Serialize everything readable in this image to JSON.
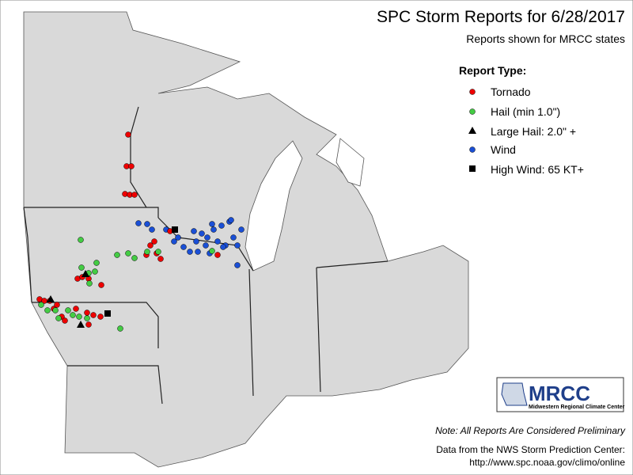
{
  "header": {
    "title": "SPC Storm Reports for 6/28/2017",
    "subtitle": "Reports shown for MRCC states"
  },
  "legend": {
    "title": "Report Type:",
    "items": [
      "Tornado",
      "Hail (min 1.0\")",
      "Large Hail: 2.0\" +",
      "Wind",
      "High Wind: 65 KT+"
    ]
  },
  "logo": {
    "name": "MRCC",
    "full_name": "Midwestern Regional Climate Center"
  },
  "footer": {
    "note": "Note: All Reports Are Considered Preliminary",
    "source": "Data from the NWS Storm Prediction Center:",
    "url": "http://www.spc.noaa.gov/climo/online"
  }
}
